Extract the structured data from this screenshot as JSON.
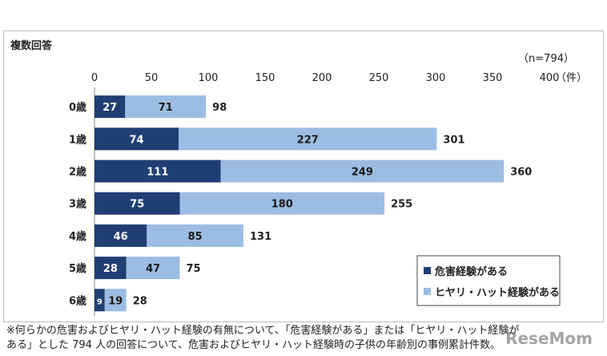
{
  "header": {
    "note": "複数回答",
    "sample_size": "（n=794）"
  },
  "chart_data": {
    "type": "bar",
    "orientation": "horizontal",
    "stacked": true,
    "categories": [
      "0歳",
      "1歳",
      "2歳",
      "3歳",
      "4歳",
      "5歳",
      "6歳"
    ],
    "series": [
      {
        "name": "危害経験がある",
        "values": [
          27,
          74,
          111,
          75,
          46,
          28,
          9
        ],
        "color": "#1f3f73"
      },
      {
        "name": "ヒヤリ・ハット経験がある",
        "values": [
          71,
          227,
          249,
          180,
          85,
          47,
          19
        ],
        "color": "#9cbde3"
      }
    ],
    "totals": [
      98,
      301,
      360,
      255,
      131,
      75,
      28
    ],
    "xlim": [
      0,
      400
    ],
    "xticks": [
      0,
      50,
      100,
      150,
      200,
      250,
      300,
      350,
      400
    ],
    "x_unit": "（件）",
    "legend_position": "bottom-right",
    "grid": false
  },
  "footnote": {
    "line1": "※何らかの危害およびヒヤリ・ハット経験の有無について、「危害経験がある」または「ヒヤリ・ハット経験が",
    "line2": "ある」とした 794 人の回答について、危害およびヒヤリ・ハット経験時の子供の年齢別の事例累計件数。"
  },
  "watermark": "ReseMom"
}
